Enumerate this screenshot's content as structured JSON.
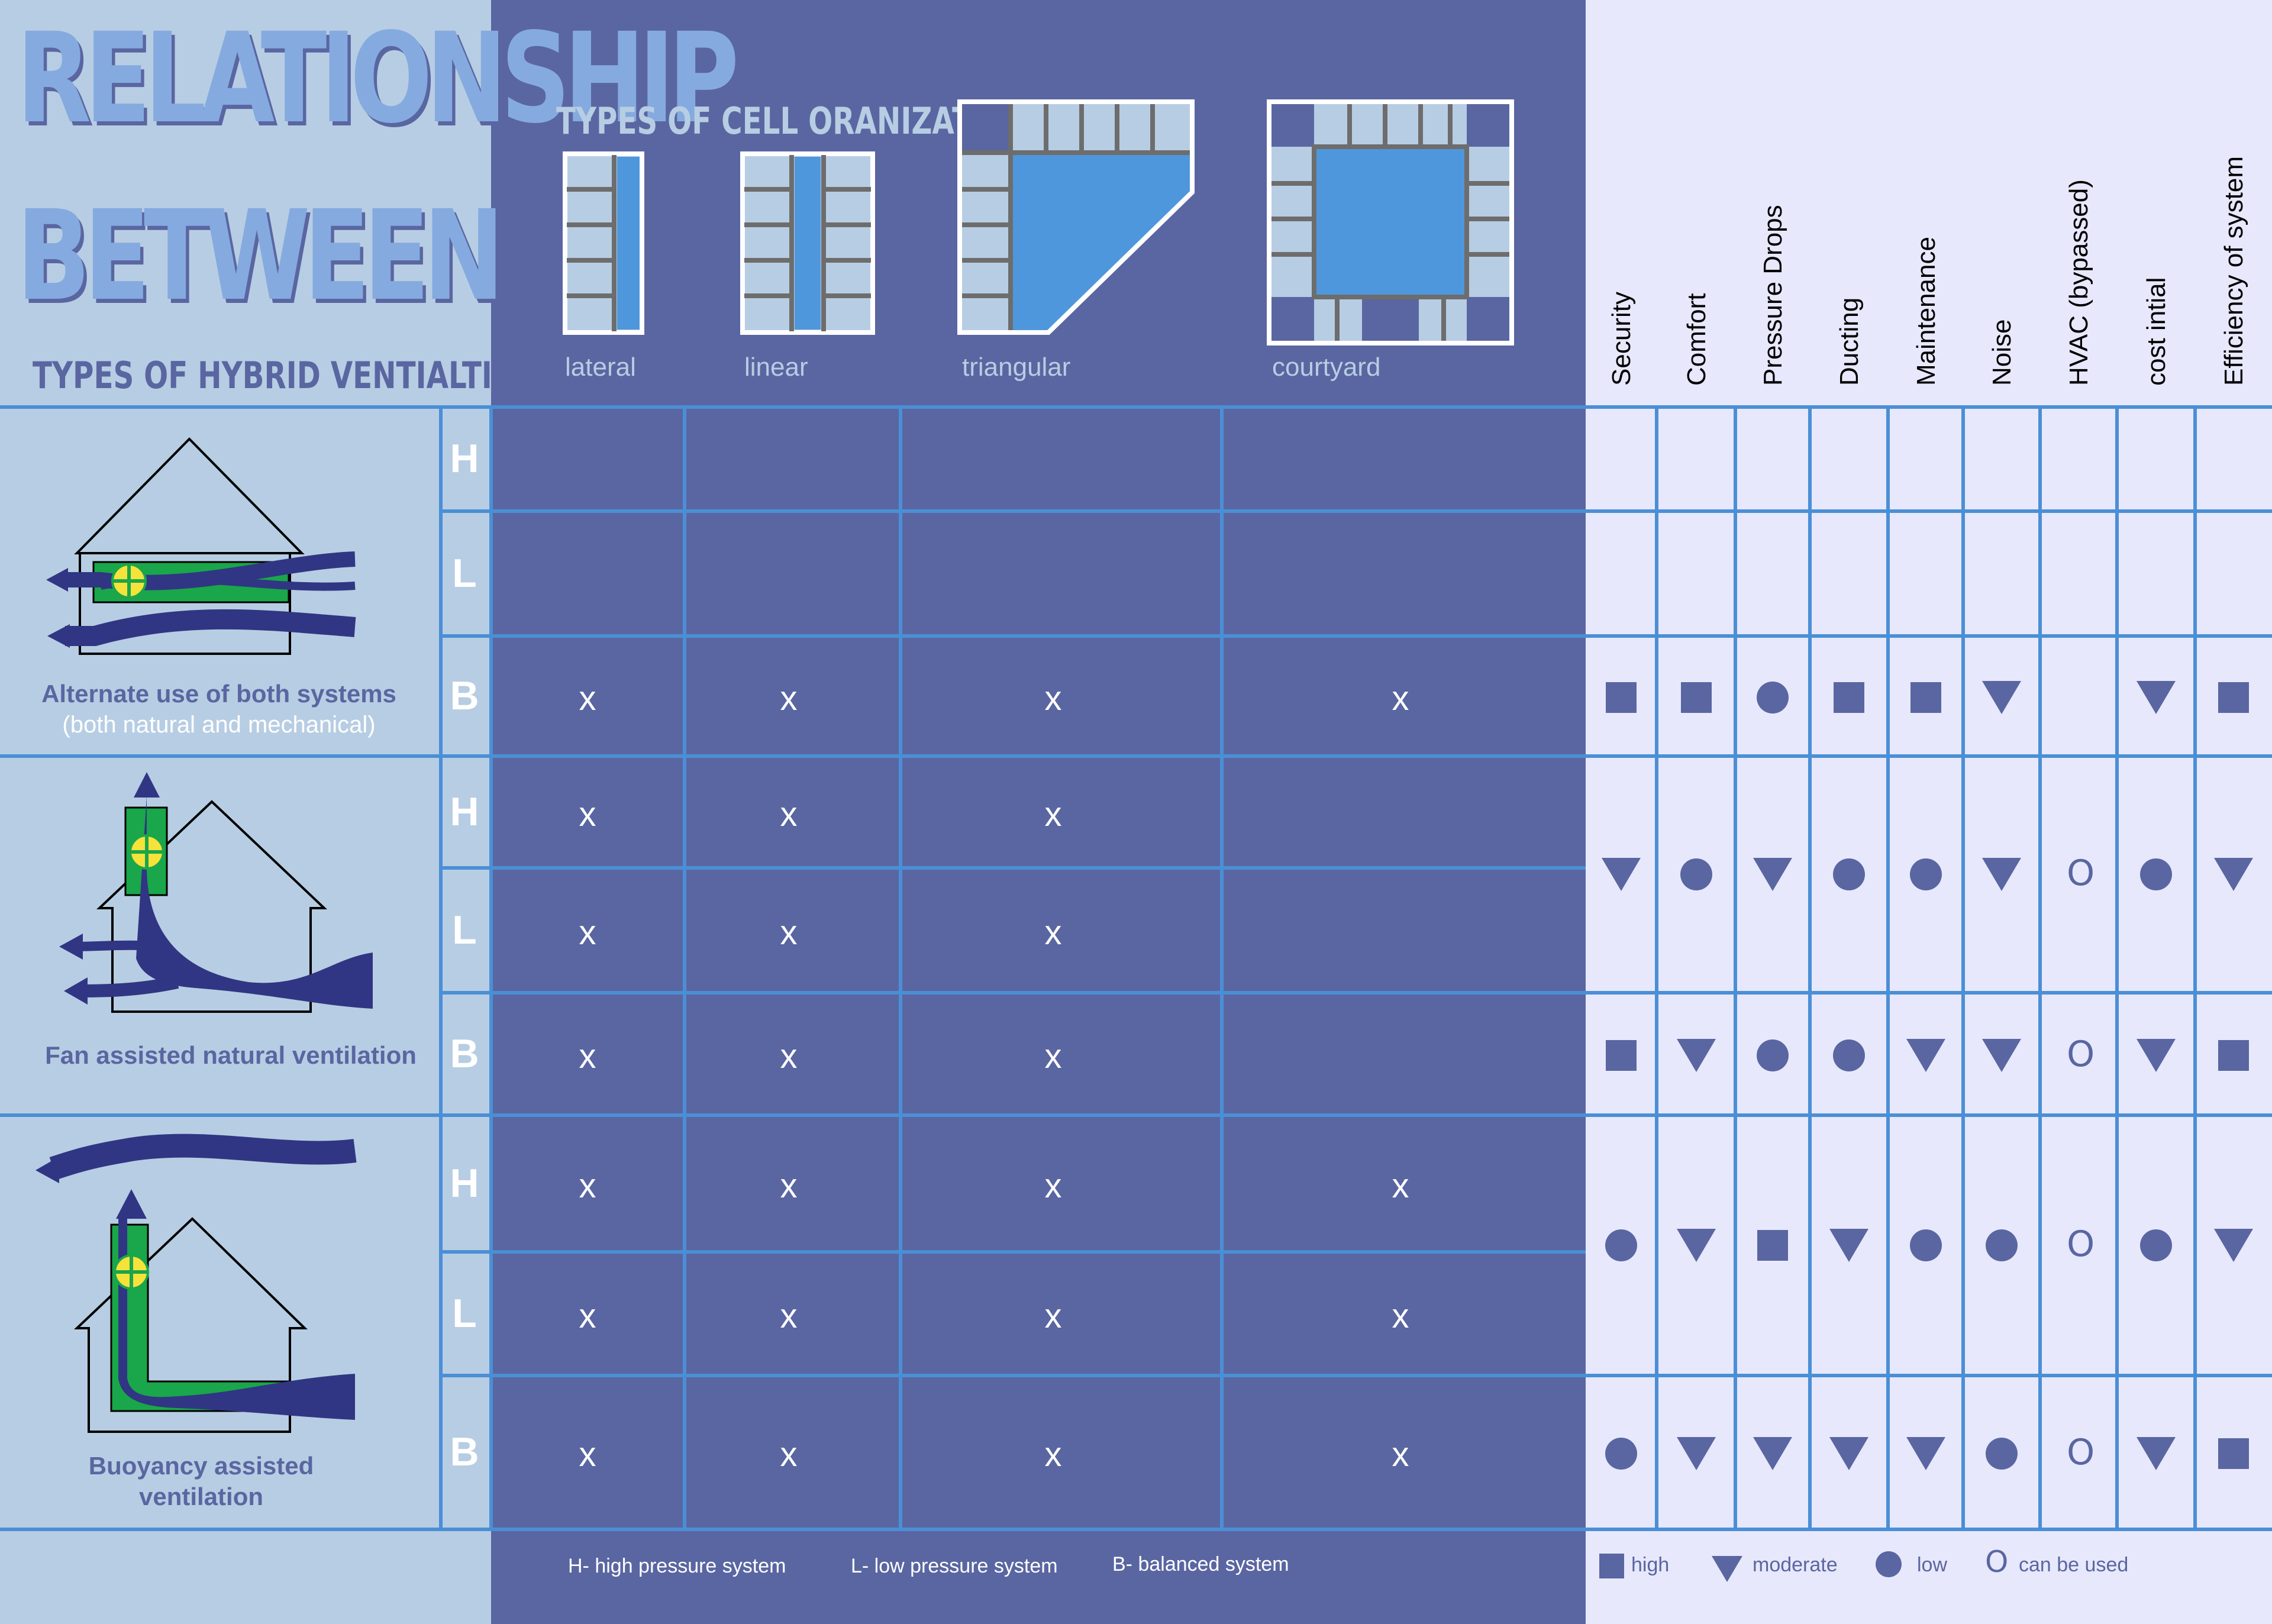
{
  "title": {
    "line1": "RELATIONSHIP",
    "line2": "BETWEEN",
    "subtitle": "TYPES OF HYBRID VENTIALTION"
  },
  "cell_org": {
    "title": "TYPES OF CELL ORANIZATION",
    "types": [
      {
        "id": "lateral",
        "label": "lateral"
      },
      {
        "id": "linear",
        "label": "linear"
      },
      {
        "id": "triangular",
        "label": "triangular"
      },
      {
        "id": "courtyard",
        "label": "courtyard"
      }
    ]
  },
  "criteria": [
    "Security",
    "Comfort",
    "Pressure Drops",
    "Ducting",
    "Maintenance",
    "Noise",
    "HVAC (bypassed)",
    "cost intial",
    "Efficiency of system"
  ],
  "ventilation_types": [
    {
      "id": "alternate",
      "name": "Alternate use of both systems",
      "sub": "(both natural and mechanical)"
    },
    {
      "id": "fan",
      "name": "Fan assisted natural ventilation",
      "sub": ""
    },
    {
      "id": "buoyancy",
      "name": "Buoyancy assisted ventilation",
      "sub": ""
    }
  ],
  "rows": [
    {
      "group": 0,
      "letter": "H",
      "marks": [
        false,
        false,
        false,
        false
      ]
    },
    {
      "group": 0,
      "letter": "L",
      "marks": [
        false,
        false,
        false,
        false
      ]
    },
    {
      "group": 0,
      "letter": "B",
      "marks": [
        true,
        true,
        true,
        true
      ],
      "ratings": [
        "high",
        "high",
        "low",
        "high",
        "high",
        "moderate",
        "",
        "moderate",
        "high"
      ]
    },
    {
      "group": 1,
      "letter": "H",
      "marks": [
        true,
        true,
        true,
        false
      ]
    },
    {
      "group": 1,
      "letter": "L",
      "marks": [
        true,
        true,
        true,
        false
      ]
    },
    {
      "group": 1,
      "letter": "B",
      "marks": [
        true,
        true,
        true,
        false
      ],
      "ratings": [
        "high",
        "moderate",
        "low",
        "low",
        "moderate",
        "moderate",
        "can",
        "moderate",
        "high"
      ]
    },
    {
      "group": 2,
      "letter": "H",
      "marks": [
        true,
        true,
        true,
        true
      ]
    },
    {
      "group": 2,
      "letter": "L",
      "marks": [
        true,
        true,
        true,
        true
      ]
    },
    {
      "group": 2,
      "letter": "B",
      "marks": [
        true,
        true,
        true,
        true
      ],
      "ratings": [
        "low",
        "moderate",
        "moderate",
        "moderate",
        "moderate",
        "low",
        "can",
        "moderate",
        "high"
      ]
    }
  ],
  "merged_ratings": [
    {
      "group": 1,
      "ratings": [
        "moderate",
        "low",
        "moderate",
        "low",
        "low",
        "moderate",
        "can",
        "low",
        "moderate"
      ]
    },
    {
      "group": 2,
      "ratings": [
        "low",
        "moderate",
        "high",
        "moderate",
        "low",
        "low",
        "can",
        "low",
        "moderate"
      ]
    }
  ],
  "x_symbol": "x",
  "ring_symbol": "O",
  "legend": {
    "systems": [
      "H- high pressure system",
      "L- low pressure system",
      "B- balanced system"
    ],
    "symbols": [
      {
        "shape": "high",
        "label": "high"
      },
      {
        "shape": "moderate",
        "label": "moderate"
      },
      {
        "shape": "low",
        "label": "low"
      },
      {
        "shape": "can",
        "label": "can be used"
      }
    ]
  },
  "colors": {
    "dark": "#5a66a1",
    "light": "#b7cde3",
    "pale": "#e7e8fb",
    "line": "#4a8fd6",
    "accent": "#4f97dc",
    "fan_green": "#1aa64a",
    "fan_yellow": "#f5e23a"
  }
}
